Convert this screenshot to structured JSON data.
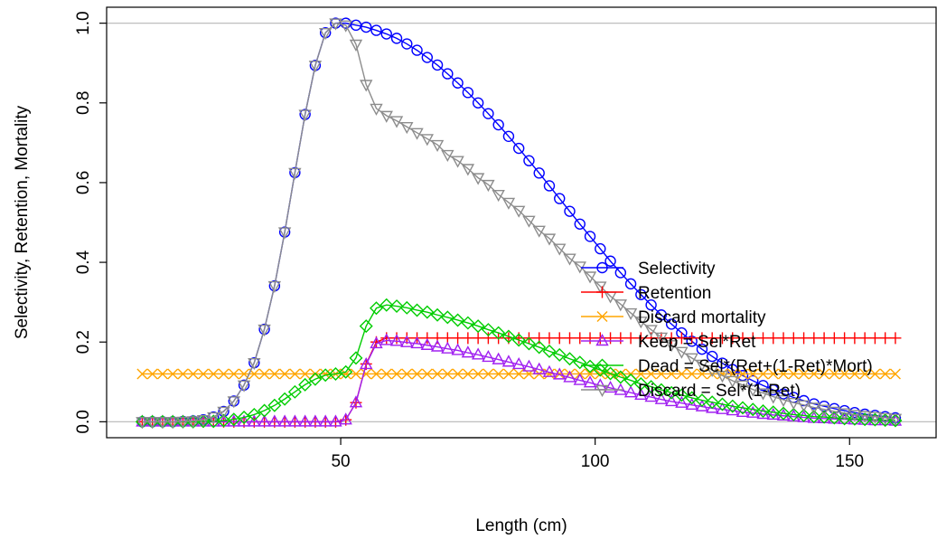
{
  "chart_data": {
    "type": "line",
    "xlabel": "Length (cm)",
    "ylabel": "Selectivity, Retention, Mortality",
    "xlim": [
      4,
      167
    ],
    "ylim": [
      -0.04,
      1.04
    ],
    "xticks": [
      50,
      100,
      150
    ],
    "yticks": [
      0.0,
      0.2,
      0.4,
      0.6,
      0.8,
      1.0
    ],
    "xtick_labels": [
      "50",
      "100",
      "150"
    ],
    "ytick_labels": [
      "0.0",
      "0.2",
      "0.4",
      "0.6",
      "0.8",
      "1.0"
    ],
    "hlines": [
      0,
      1
    ],
    "x": [
      11,
      13,
      15,
      17,
      19,
      21,
      23,
      25,
      27,
      29,
      31,
      33,
      35,
      37,
      39,
      41,
      43,
      45,
      47,
      49,
      51,
      53,
      55,
      57,
      59,
      61,
      63,
      65,
      67,
      69,
      71,
      73,
      75,
      77,
      79,
      81,
      83,
      85,
      87,
      89,
      91,
      93,
      95,
      97,
      99,
      101,
      103,
      105,
      107,
      109,
      111,
      113,
      115,
      117,
      119,
      121,
      123,
      125,
      127,
      129,
      131,
      133,
      135,
      137,
      139,
      141,
      143,
      145,
      147,
      149,
      151,
      153,
      155,
      157,
      159
    ],
    "legend_position": "center-right",
    "series": [
      {
        "name": "Selectivity",
        "color": "#0000ff",
        "marker": "circle",
        "values": [
          0,
          0,
          0,
          0,
          0.001,
          0.002,
          0.005,
          0.012,
          0.026,
          0.052,
          0.092,
          0.148,
          0.232,
          0.341,
          0.476,
          0.625,
          0.771,
          0.894,
          0.976,
          1.0,
          1.0,
          0.995,
          0.99,
          0.982,
          0.973,
          0.962,
          0.948,
          0.932,
          0.914,
          0.895,
          0.873,
          0.85,
          0.826,
          0.8,
          0.773,
          0.745,
          0.716,
          0.686,
          0.655,
          0.624,
          0.592,
          0.56,
          0.528,
          0.496,
          0.465,
          0.434,
          0.403,
          0.374,
          0.346,
          0.319,
          0.293,
          0.268,
          0.245,
          0.223,
          0.202,
          0.182,
          0.164,
          0.147,
          0.131,
          0.116,
          0.103,
          0.091,
          0.08,
          0.07,
          0.061,
          0.053,
          0.045,
          0.039,
          0.033,
          0.028,
          0.023,
          0.019,
          0.016,
          0.013,
          0.01
        ]
      },
      {
        "name": "Retention",
        "color": "#ff0000",
        "marker": "plus",
        "values": [
          0,
          0,
          0,
          0,
          0,
          0,
          0,
          0,
          0,
          0,
          0,
          0,
          0,
          0,
          0,
          0,
          0,
          0,
          0,
          0,
          0.005,
          0.048,
          0.145,
          0.2,
          0.21,
          0.21,
          0.21,
          0.21,
          0.21,
          0.21,
          0.21,
          0.21,
          0.21,
          0.21,
          0.21,
          0.21,
          0.21,
          0.21,
          0.21,
          0.21,
          0.21,
          0.21,
          0.21,
          0.21,
          0.21,
          0.21,
          0.21,
          0.21,
          0.21,
          0.21,
          0.21,
          0.21,
          0.21,
          0.21,
          0.21,
          0.21,
          0.21,
          0.21,
          0.21,
          0.21,
          0.21,
          0.21,
          0.21,
          0.21,
          0.21,
          0.21,
          0.21,
          0.21,
          0.21,
          0.21,
          0.21,
          0.21,
          0.21,
          0.21,
          0.21
        ]
      },
      {
        "name": "Discard mortality",
        "color": "#ffa500",
        "marker": "x",
        "values": [
          0.12,
          0.12,
          0.12,
          0.12,
          0.12,
          0.12,
          0.12,
          0.12,
          0.12,
          0.12,
          0.12,
          0.12,
          0.12,
          0.12,
          0.12,
          0.12,
          0.12,
          0.12,
          0.12,
          0.12,
          0.12,
          0.12,
          0.12,
          0.12,
          0.12,
          0.12,
          0.12,
          0.12,
          0.12,
          0.12,
          0.12,
          0.12,
          0.12,
          0.12,
          0.12,
          0.12,
          0.12,
          0.12,
          0.12,
          0.12,
          0.12,
          0.12,
          0.12,
          0.12,
          0.12,
          0.12,
          0.12,
          0.12,
          0.12,
          0.12,
          0.12,
          0.12,
          0.12,
          0.12,
          0.12,
          0.12,
          0.12,
          0.12,
          0.12,
          0.12,
          0.12,
          0.12,
          0.12,
          0.12,
          0.12,
          0.12,
          0.12,
          0.12,
          0.12,
          0.12,
          0.12,
          0.12,
          0.12,
          0.12,
          0.12
        ]
      },
      {
        "name": "Keep = Sel*Ret",
        "color": "#a020f0",
        "marker": "triangle-up",
        "values": [
          0,
          0,
          0,
          0,
          0,
          0,
          0,
          0,
          0,
          0,
          0,
          0,
          0,
          0,
          0,
          0,
          0,
          0,
          0,
          0,
          0.005,
          0.048,
          0.144,
          0.196,
          0.204,
          0.202,
          0.199,
          0.196,
          0.192,
          0.188,
          0.183,
          0.179,
          0.173,
          0.168,
          0.162,
          0.156,
          0.15,
          0.144,
          0.138,
          0.131,
          0.124,
          0.118,
          0.111,
          0.104,
          0.098,
          0.091,
          0.085,
          0.079,
          0.073,
          0.067,
          0.062,
          0.056,
          0.051,
          0.047,
          0.042,
          0.038,
          0.034,
          0.031,
          0.028,
          0.024,
          0.022,
          0.019,
          0.017,
          0.015,
          0.013,
          0.011,
          0.009,
          0.008,
          0.007,
          0.006,
          0.005,
          0.004,
          0.003,
          0.003,
          0.002
        ]
      },
      {
        "name": "Dead = Sel*(Ret+(1-Ret)*Mort)",
        "color": "#00cd00",
        "marker": "diamond",
        "values": [
          0,
          0,
          0,
          0,
          0,
          0,
          0.001,
          0.001,
          0.003,
          0.006,
          0.011,
          0.018,
          0.028,
          0.041,
          0.057,
          0.075,
          0.093,
          0.107,
          0.117,
          0.12,
          0.125,
          0.16,
          0.24,
          0.285,
          0.293,
          0.29,
          0.286,
          0.28,
          0.275,
          0.268,
          0.262,
          0.255,
          0.248,
          0.24,
          0.231,
          0.223,
          0.214,
          0.205,
          0.196,
          0.187,
          0.177,
          0.168,
          0.158,
          0.149,
          0.139,
          0.13,
          0.121,
          0.112,
          0.104,
          0.095,
          0.088,
          0.08,
          0.073,
          0.067,
          0.06,
          0.054,
          0.049,
          0.044,
          0.039,
          0.035,
          0.031,
          0.027,
          0.024,
          0.021,
          0.018,
          0.016,
          0.013,
          0.012,
          0.01,
          0.008,
          0.007,
          0.006,
          0.005,
          0.004,
          0.003
        ]
      },
      {
        "name": "Discard = Sel*(1-Ret)",
        "color": "#8c8c8c",
        "marker": "triangle-down",
        "values": [
          0,
          0,
          0,
          0,
          0.001,
          0.002,
          0.005,
          0.012,
          0.026,
          0.052,
          0.092,
          0.148,
          0.232,
          0.341,
          0.476,
          0.625,
          0.771,
          0.894,
          0.976,
          1.0,
          0.995,
          0.947,
          0.846,
          0.786,
          0.768,
          0.755,
          0.74,
          0.725,
          0.71,
          0.695,
          0.67,
          0.655,
          0.635,
          0.612,
          0.595,
          0.57,
          0.55,
          0.53,
          0.505,
          0.48,
          0.46,
          0.435,
          0.41,
          0.39,
          0.365,
          0.34,
          0.315,
          0.295,
          0.273,
          0.252,
          0.231,
          0.212,
          0.193,
          0.176,
          0.16,
          0.144,
          0.13,
          0.116,
          0.103,
          0.092,
          0.081,
          0.072,
          0.063,
          0.055,
          0.048,
          0.042,
          0.036,
          0.031,
          0.026,
          0.022,
          0.018,
          0.015,
          0.013,
          0.01,
          0.008
        ]
      }
    ]
  }
}
